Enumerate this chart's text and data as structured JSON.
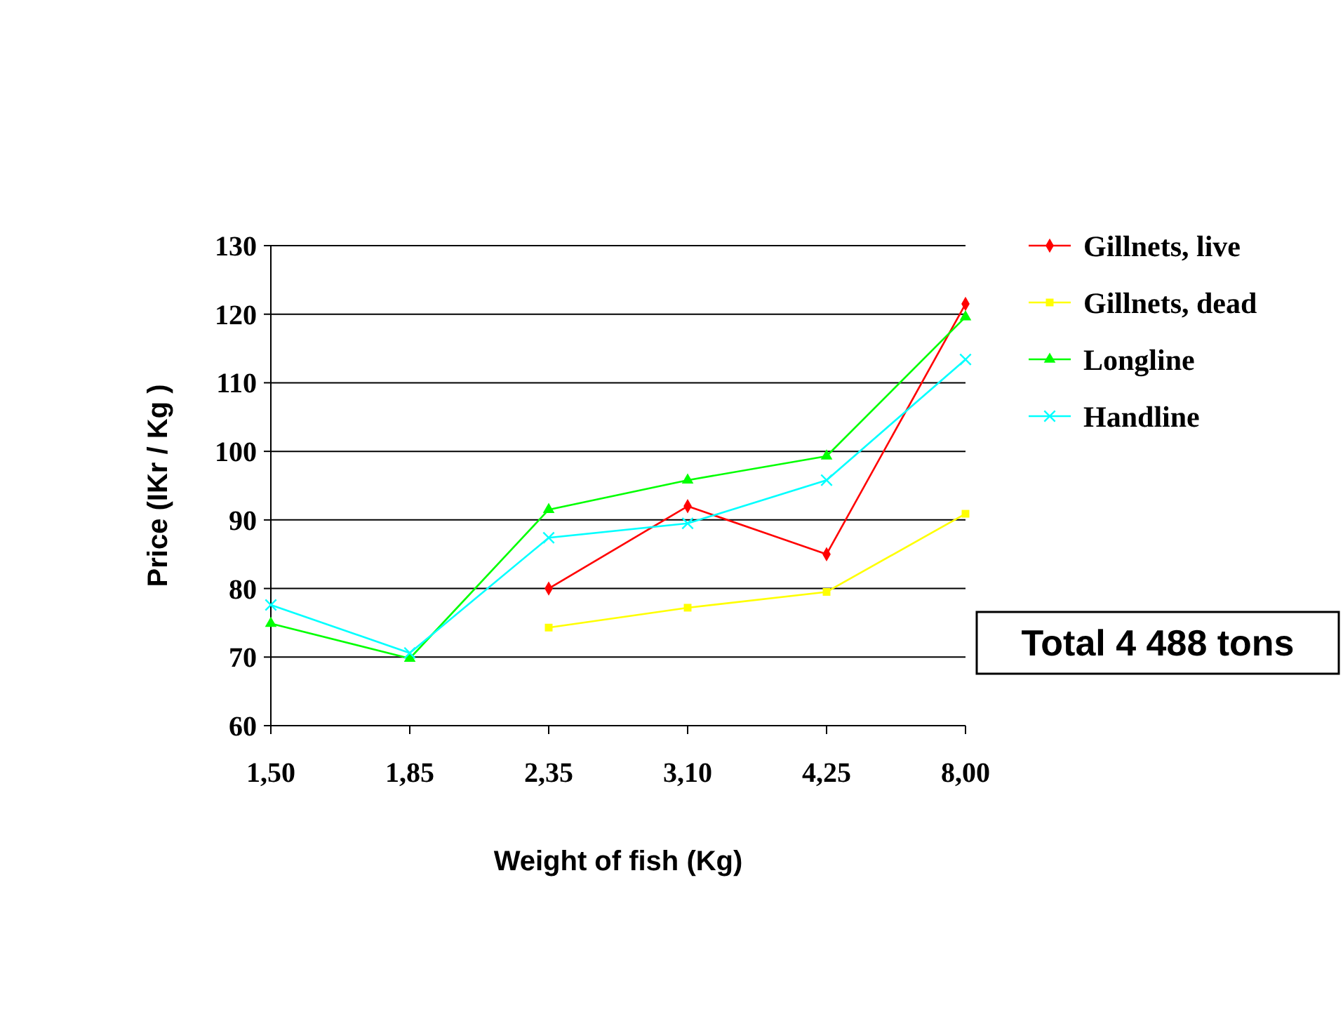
{
  "chart_data": {
    "type": "line",
    "xlabel": "Weight of fish  (Kg)",
    "ylabel": "Price (IKr / Kg )",
    "categories": [
      "1,50",
      "1,85",
      "2,35",
      "3,10",
      "4,25",
      "8,00"
    ],
    "ylim": [
      60,
      130
    ],
    "yticks": [
      60,
      70,
      80,
      90,
      100,
      110,
      120,
      130
    ],
    "grid": "y",
    "legend": "top right",
    "series": [
      {
        "name": "Gillnets, live",
        "color": "#ff0000",
        "marker": "diamond",
        "values": [
          null,
          null,
          80,
          92,
          85,
          121.5
        ]
      },
      {
        "name": "Gillnets, dead",
        "color": "#ffff00",
        "marker": "square",
        "values": [
          null,
          null,
          74.3,
          77.2,
          79.5,
          90.9
        ]
      },
      {
        "name": "Longline",
        "color": "#00ff00",
        "marker": "triangle",
        "values": [
          74.9,
          69.8,
          91.5,
          95.8,
          99.3,
          119.6
        ]
      },
      {
        "name": "Handline",
        "color": "#00ffff",
        "marker": "cross",
        "values": [
          77.6,
          70.6,
          87.4,
          89.5,
          95.8,
          113.4
        ]
      }
    ],
    "annotations": [
      "Total 4 488 tons"
    ]
  }
}
